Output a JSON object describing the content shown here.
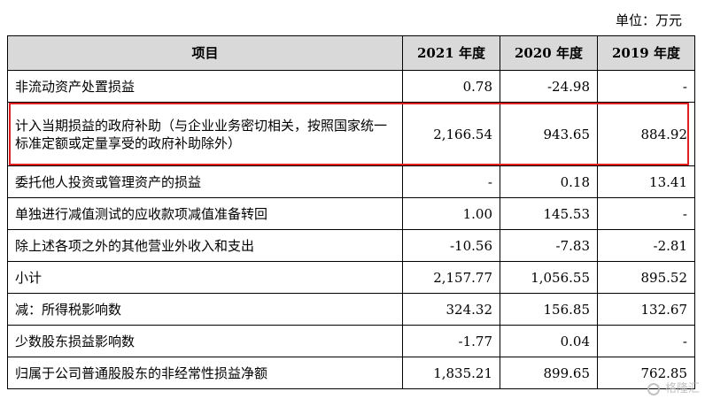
{
  "unit_label": "单位：万元",
  "table": {
    "headers": [
      "项目",
      "2021 年度",
      "2020 年度",
      "2019 年度"
    ],
    "rows": [
      {
        "item": "非流动资产处置损益",
        "y2021": "0.78",
        "y2020": "-24.98",
        "y2019": "-"
      },
      {
        "item": "计入当期损益的政府补助（与企业业务密切相关，按照国家统一标准定额或定量享受的政府补助除外）",
        "y2021": "2,166.54",
        "y2020": "943.65",
        "y2019": "884.92",
        "highlighted": true
      },
      {
        "item": "委托他人投资或管理资产的损益",
        "y2021": "-",
        "y2020": "0.18",
        "y2019": "13.41"
      },
      {
        "item": "单独进行减值测试的应收款项减值准备转回",
        "y2021": "1.00",
        "y2020": "145.53",
        "y2019": "-"
      },
      {
        "item": "除上述各项之外的其他营业外收入和支出",
        "y2021": "-10.56",
        "y2020": "-7.83",
        "y2019": "-2.81"
      },
      {
        "item": "小计",
        "y2021": "2,157.77",
        "y2020": "1,056.55",
        "y2019": "895.52"
      },
      {
        "item": "减：所得税影响数",
        "y2021": "324.32",
        "y2020": "156.85",
        "y2019": "132.67"
      },
      {
        "item": "少数股东损益影响数",
        "y2021": "-1.77",
        "y2020": "0.04",
        "y2019": "-"
      },
      {
        "item": "归属于公司普通股股东的非经常性损益净额",
        "y2021": "1,835.21",
        "y2020": "899.65",
        "y2019": "762.85"
      }
    ]
  },
  "highlight_color": "#e02020",
  "watermark": {
    "icon": "gelonghui-logo-icon",
    "text": "格隆汇"
  }
}
